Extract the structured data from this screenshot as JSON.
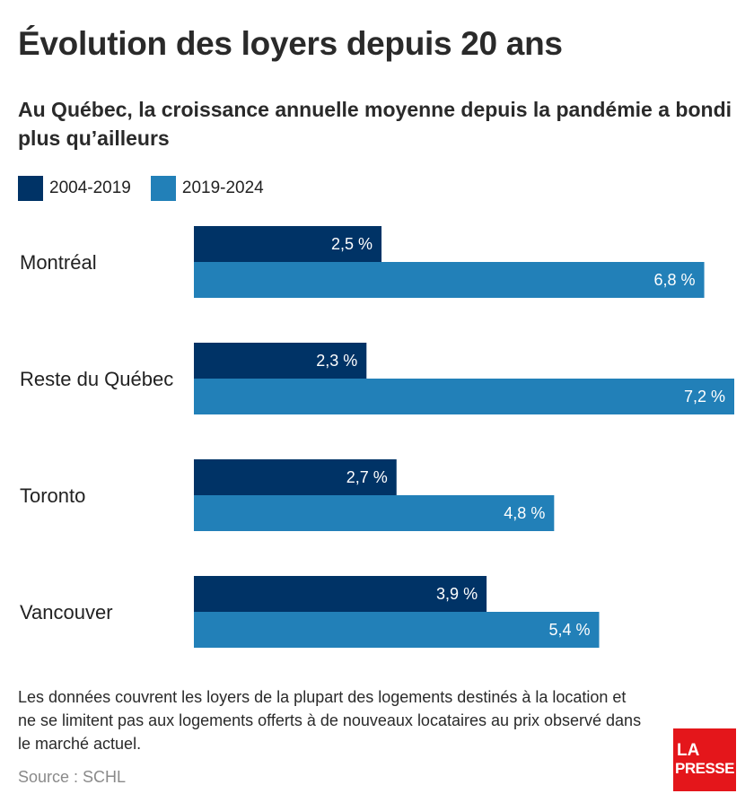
{
  "chart_data": {
    "type": "bar",
    "orientation": "horizontal",
    "title": "Évolution des loyers depuis 20 ans",
    "subtitle": "Au Québec, la croissance annuelle moyenne depuis la pandémie a bondi plus qu’ailleurs",
    "categories": [
      "Montréal",
      "Reste du Québec",
      "Toronto",
      "Vancouver"
    ],
    "series": [
      {
        "name": "2004-2019",
        "color": "#003366",
        "values": [
          2.5,
          2.3,
          2.7,
          3.9
        ],
        "labels": [
          "2,5 %",
          "2,3 %",
          "2,7 %",
          "3,9 %"
        ]
      },
      {
        "name": "2019-2024",
        "color": "#2280b8",
        "values": [
          6.8,
          7.2,
          4.8,
          5.4
        ],
        "labels": [
          "6,8 %",
          "7,2 %",
          "4,8 %",
          "5,4 %"
        ]
      }
    ],
    "xlim": [
      0,
      7.2
    ],
    "grid": false,
    "legend_position": "top-left"
  },
  "note": "Les données couvrent les loyers de la plupart des logements destinés à la location et ne se limitent pas aux logements offerts à de nouveaux locataires au prix observé dans le marché actuel.",
  "source": "Source : SCHL",
  "logo": {
    "line1": "LA",
    "line2": "PRESSE",
    "color": "#e4161b"
  }
}
